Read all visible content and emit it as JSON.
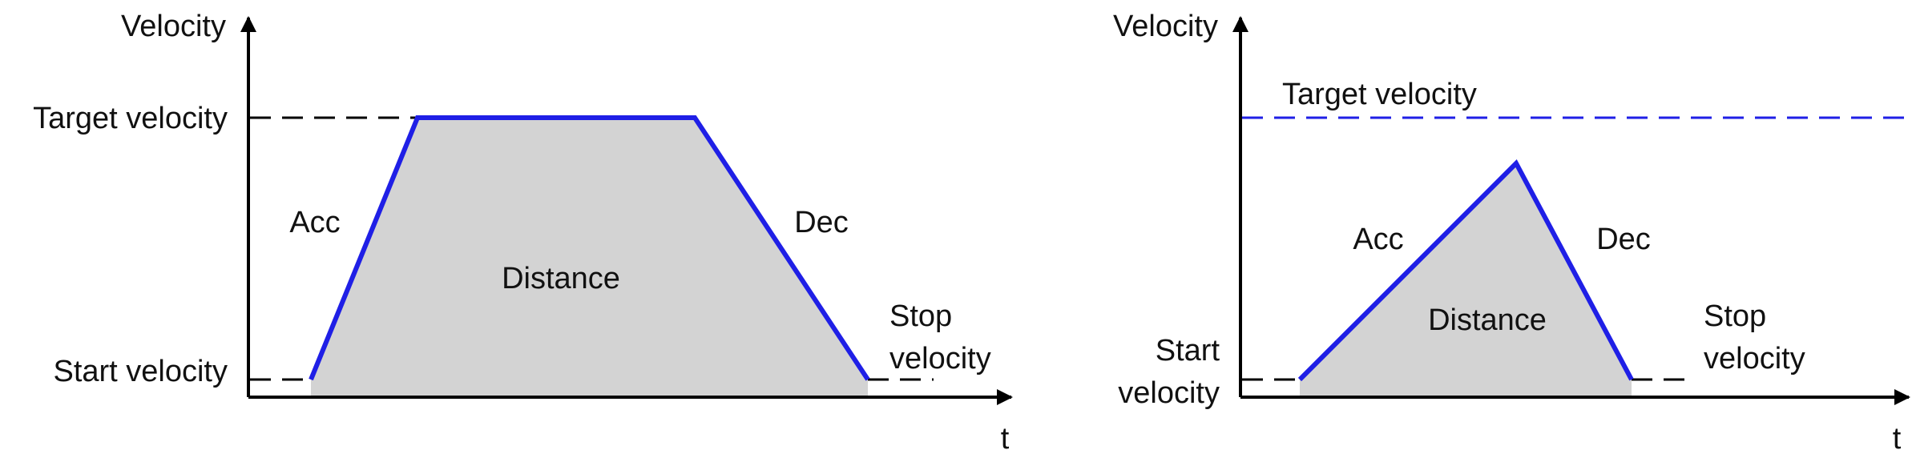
{
  "colors": {
    "profile": "#1f1fe6",
    "area": "#d3d3d3",
    "axis": "#000000",
    "guide": "#000000",
    "target_line": "#1f1fe6"
  },
  "diagrams": [
    {
      "id": "trapezoidal",
      "y_axis_label": "Velocity",
      "x_axis_label": "t",
      "target_label": "Target velocity",
      "start_label": [
        "Start velocity"
      ],
      "stop_label": [
        "Stop",
        "velocity"
      ],
      "acc_label": "Acc",
      "dec_label": "Dec",
      "area_label": "Distance"
    },
    {
      "id": "triangular",
      "y_axis_label": "Velocity",
      "x_axis_label": "t",
      "target_label": "Target velocity",
      "start_label": [
        "Start",
        "velocity"
      ],
      "stop_label": [
        "Stop",
        "velocity"
      ],
      "acc_label": "Acc",
      "dec_label": "Dec",
      "area_label": "Distance"
    }
  ]
}
